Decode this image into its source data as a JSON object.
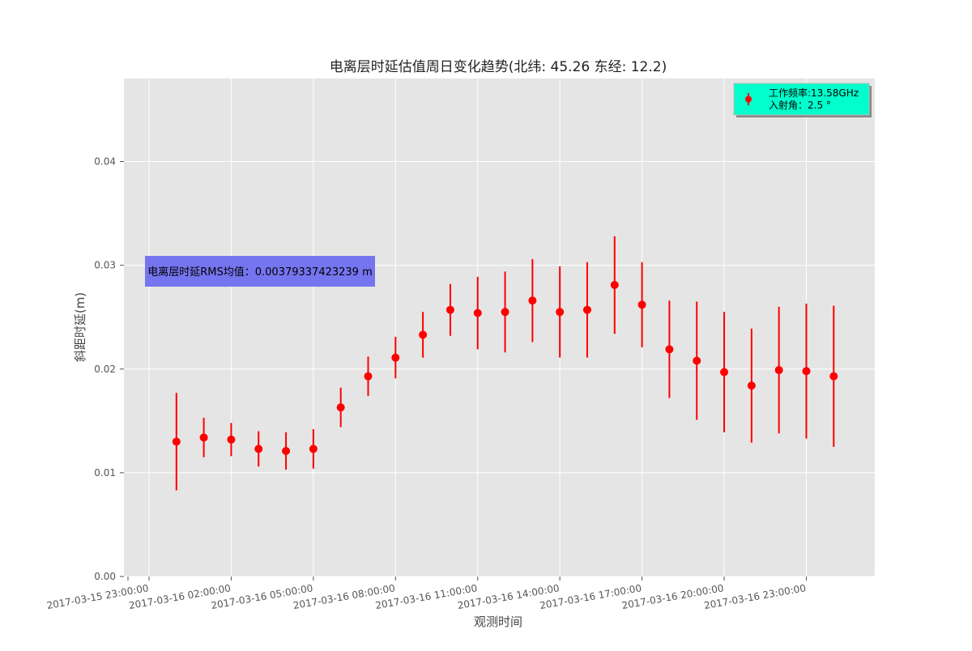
{
  "chart_data": {
    "type": "scatter",
    "title": "电离层时延估值周日变化趋势(北纬: 45.26 东经: 12.2)",
    "xlabel": "观测时间",
    "ylabel": "斜距时延(m)",
    "ylim": [
      0,
      0.048
    ],
    "xlim": [
      "2017-03-15 22:05:00",
      "2017-03-17 01:30:00"
    ],
    "grid": true,
    "x_tick_labels": [
      "2017-03-15 23:00:00",
      "2017-03-16 02:00:00",
      "2017-03-16 05:00:00",
      "2017-03-16 08:00:00",
      "2017-03-16 11:00:00",
      "2017-03-16 14:00:00",
      "2017-03-16 17:00:00",
      "2017-03-16 20:00:00",
      "2017-03-16 23:00:00"
    ],
    "y_ticks": [
      0.0,
      0.01,
      0.02,
      0.03,
      0.04
    ],
    "y_tick_labels": [
      "0.00",
      "0.01",
      "0.02",
      "0.03",
      "0.04"
    ],
    "series": [
      {
        "color": "#ff0000",
        "x": [
          "2017-03-16 00:00:00",
          "2017-03-16 01:00:00",
          "2017-03-16 02:00:00",
          "2017-03-16 03:00:00",
          "2017-03-16 04:00:00",
          "2017-03-16 05:00:00",
          "2017-03-16 06:00:00",
          "2017-03-16 07:00:00",
          "2017-03-16 08:00:00",
          "2017-03-16 09:00:00",
          "2017-03-16 10:00:00",
          "2017-03-16 11:00:00",
          "2017-03-16 12:00:00",
          "2017-03-16 13:00:00",
          "2017-03-16 14:00:00",
          "2017-03-16 15:00:00",
          "2017-03-16 16:00:00",
          "2017-03-16 17:00:00",
          "2017-03-16 18:00:00",
          "2017-03-16 19:00:00",
          "2017-03-16 20:00:00",
          "2017-03-16 21:00:00",
          "2017-03-16 22:00:00",
          "2017-03-16 23:00:00",
          "2017-03-17 00:00:00"
        ],
        "y": [
          0.013,
          0.0134,
          0.0132,
          0.0123,
          0.0121,
          0.0123,
          0.0163,
          0.0193,
          0.0211,
          0.0233,
          0.0257,
          0.0254,
          0.0255,
          0.0266,
          0.0255,
          0.0257,
          0.0281,
          0.0262,
          0.0219,
          0.0208,
          0.0197,
          0.0184,
          0.0199,
          0.0198,
          0.0193
        ],
        "err": [
          0.0047,
          0.0019,
          0.0016,
          0.0017,
          0.0018,
          0.0019,
          0.0019,
          0.0019,
          0.002,
          0.0022,
          0.0025,
          0.0035,
          0.0039,
          0.004,
          0.0044,
          0.0046,
          0.0047,
          0.0041,
          0.0047,
          0.0057,
          0.0058,
          0.0055,
          0.0061,
          0.0065,
          0.0068
        ]
      }
    ],
    "legend": {
      "placement": "top-right",
      "lines": [
        "工作频率:13.58GHz",
        "入射角：2.5 °"
      ],
      "facecolor": "#00ffcc"
    },
    "annotation": {
      "text": "电离层时延RMS均值：0.00379337423239 m",
      "facecolor": "#7575f0"
    },
    "colors": {
      "axes_bg": "#e5e5e5",
      "grid": "#ffffff",
      "marker": "#ff0000"
    }
  }
}
